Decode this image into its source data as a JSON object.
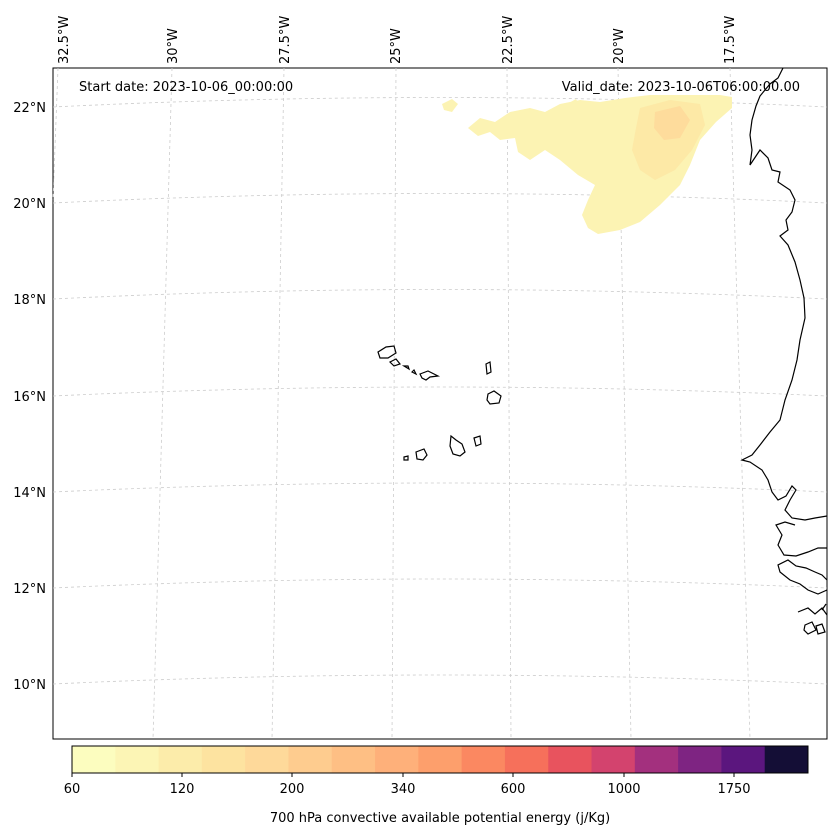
{
  "header": {
    "start_date": "Start date: 2023-10-06_00:00:00",
    "valid_date": "Valid_date: 2023-10-06T06:00:00.00"
  },
  "axes": {
    "lon_labels": [
      "32.5°W",
      "30°W",
      "27.5°W",
      "25°W",
      "22.5°W",
      "20°W",
      "17.5°W"
    ],
    "lat_labels": [
      "22°N",
      "20°N",
      "18°N",
      "16°N",
      "14°N",
      "12°N",
      "10°N"
    ]
  },
  "colorbar": {
    "label": "700 hPa convective available potential energy (j/Kg)",
    "tick_labels": [
      "60",
      "120",
      "200",
      "340",
      "600",
      "1000",
      "1750"
    ],
    "colors": [
      "#fcfdbf",
      "#fcf5b5",
      "#fcecaa",
      "#fde3a0",
      "#fed99a",
      "#fecc8f",
      "#febf84",
      "#feb07a",
      "#fd9f6c",
      "#fb8861",
      "#f6705b",
      "#e8535e",
      "#d3436e",
      "#a3307e",
      "#7e2482",
      "#5b167e",
      "#140e36"
    ]
  },
  "layers": {
    "field": "700 hPa convective available potential energy",
    "colormap": "magma_r",
    "coastline_color": "#000000",
    "grid": true
  }
}
